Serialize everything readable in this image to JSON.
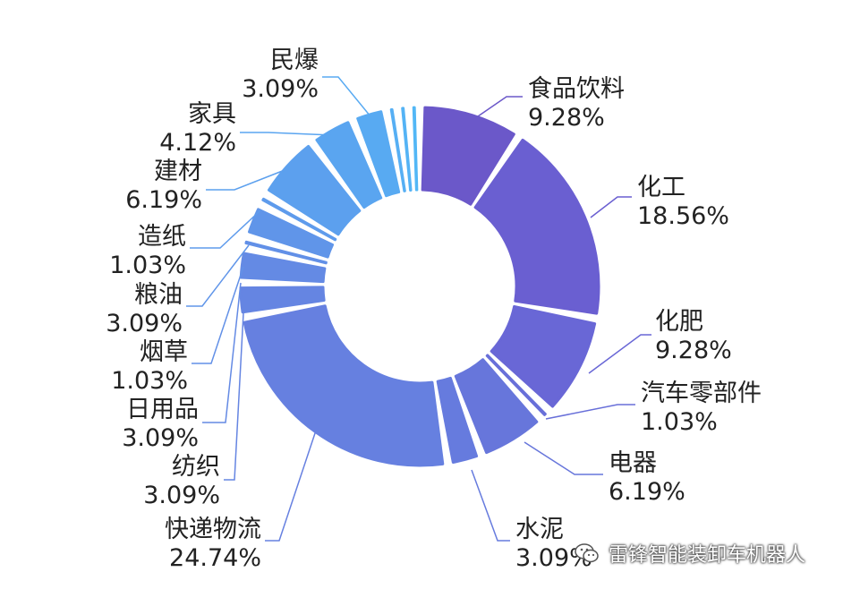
{
  "chart_data": {
    "type": "pie",
    "title": "",
    "slices": [
      {
        "label": "食品饮料",
        "value": 9.28,
        "value_label": "9.28%",
        "color": "#6b58c9"
      },
      {
        "label": "化工",
        "value": 18.56,
        "value_label": "18.56%",
        "color": "#6a5fd1"
      },
      {
        "label": "化肥",
        "value": 9.28,
        "value_label": "9.28%",
        "color": "#6967d6"
      },
      {
        "label": "汽车零部件",
        "value": 1.03,
        "value_label": "1.03%",
        "color": "#686fd9"
      },
      {
        "label": "电器",
        "value": 6.19,
        "value_label": "6.19%",
        "color": "#6776db"
      },
      {
        "label": "水泥",
        "value": 3.09,
        "value_label": "3.09%",
        "color": "#667bde"
      },
      {
        "label": "快递物流",
        "value": 24.74,
        "value_label": "24.74%",
        "color": "#6680e0"
      },
      {
        "label": "纺织",
        "value": 3.09,
        "value_label": "3.09%",
        "color": "#6585e2"
      },
      {
        "label": "日用品",
        "value": 3.09,
        "value_label": "3.09%",
        "color": "#648ae4"
      },
      {
        "label": "烟草",
        "value": 1.03,
        "value_label": "1.03%",
        "color": "#6290e7"
      },
      {
        "label": "粮油",
        "value": 3.09,
        "value_label": "3.09%",
        "color": "#6095e9"
      },
      {
        "label": "造纸",
        "value": 1.03,
        "value_label": "1.03%",
        "color": "#5e9bec"
      },
      {
        "label": "建材",
        "value": 6.19,
        "value_label": "6.19%",
        "color": "#5ca0ee"
      },
      {
        "label": "家具",
        "value": 4.12,
        "value_label": "4.12%",
        "color": "#5aa5f0"
      },
      {
        "label": "民爆",
        "value": 3.09,
        "value_label": "3.09%",
        "color": "#58aaf2"
      },
      {
        "label": "",
        "value": 1.0,
        "value_label": "",
        "color": "#56aff4"
      },
      {
        "label": "",
        "value": 1.0,
        "value_label": "",
        "color": "#54b3f5"
      },
      {
        "label": "",
        "value": 1.0,
        "value_label": "",
        "color": "#52b7f6"
      }
    ],
    "legend": "none"
  },
  "watermark": {
    "icon": "wechat-icon",
    "text": "雷锋智能装卸车机器人"
  }
}
